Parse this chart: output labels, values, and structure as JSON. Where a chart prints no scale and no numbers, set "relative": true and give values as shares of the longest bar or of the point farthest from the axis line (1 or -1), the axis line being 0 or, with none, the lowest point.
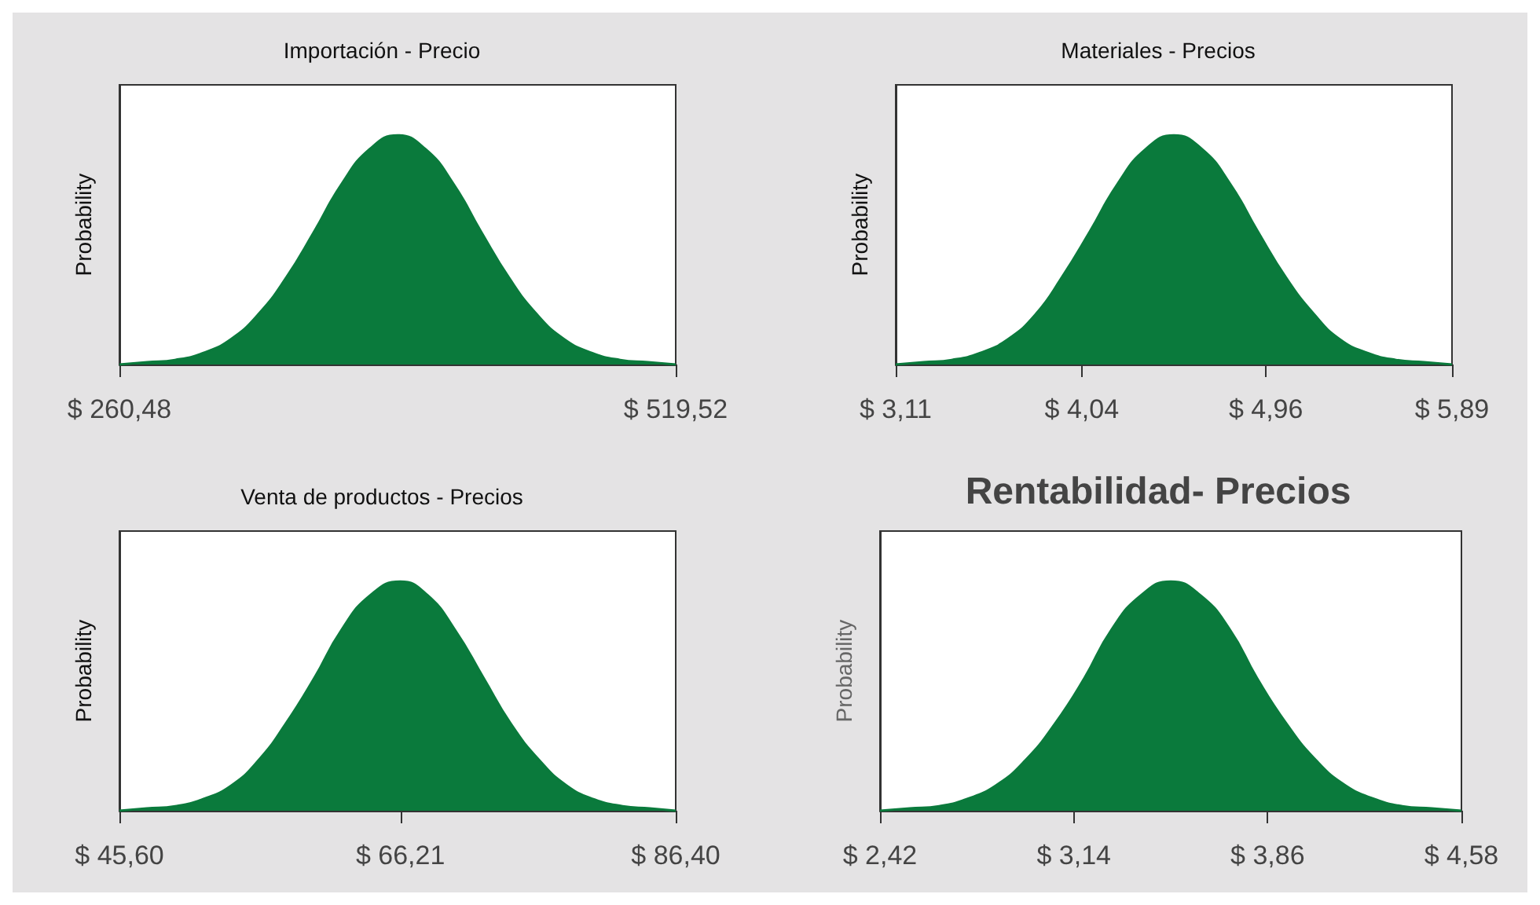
{
  "chart_data": [
    {
      "type": "area",
      "title": "Importación - Precio",
      "ylabel": "Probability",
      "relative": true,
      "grid": false,
      "color": "#0a7a3c",
      "xlim": [
        260.48,
        519.52
      ],
      "xticks": [
        {
          "value": 260.48,
          "label": "$ 260,48"
        },
        {
          "value": 519.52,
          "label": "$ 519,52"
        }
      ],
      "x": [
        260.48,
        273.43,
        286.38,
        299.34,
        312.29,
        325.24,
        338.19,
        351.15,
        364.1,
        377.05,
        390.0,
        402.95,
        415.9,
        428.86,
        441.81,
        454.76,
        467.71,
        480.66,
        493.62,
        506.57,
        519.52
      ],
      "values": [
        0,
        0.01,
        0.02,
        0.05,
        0.11,
        0.22,
        0.38,
        0.58,
        0.79,
        0.94,
        1,
        0.94,
        0.79,
        0.58,
        0.38,
        0.22,
        0.11,
        0.05,
        0.02,
        0.01,
        0
      ]
    },
    {
      "type": "area",
      "title": "Materiales - Precios",
      "ylabel": "Probability",
      "relative": true,
      "grid": false,
      "color": "#0a7a3c",
      "xlim": [
        3.11,
        5.89
      ],
      "xticks": [
        {
          "value": 3.11,
          "label": "$ 3,11"
        },
        {
          "value": 4.04,
          "label": "$ 4,04"
        },
        {
          "value": 4.96,
          "label": "$ 4,96"
        },
        {
          "value": 5.89,
          "label": "$ 5,89"
        }
      ],
      "x": [
        3.11,
        3.25,
        3.39,
        3.53,
        3.67,
        3.81,
        3.94,
        4.08,
        4.22,
        4.36,
        4.5,
        4.64,
        4.78,
        4.92,
        5.06,
        5.2,
        5.33,
        5.47,
        5.61,
        5.75,
        5.89
      ],
      "values": [
        0,
        0.01,
        0.02,
        0.05,
        0.11,
        0.22,
        0.38,
        0.58,
        0.79,
        0.94,
        1,
        0.94,
        0.79,
        0.58,
        0.38,
        0.22,
        0.11,
        0.05,
        0.02,
        0.01,
        0
      ]
    },
    {
      "type": "area",
      "title": "Venta de productos - Precios",
      "ylabel": "Probability",
      "relative": true,
      "grid": false,
      "color": "#0a7a3c",
      "xlim": [
        45.6,
        86.4
      ],
      "xticks": [
        {
          "value": 45.6,
          "label": "$ 45,60"
        },
        {
          "value": 66.21,
          "label": "$ 66,21"
        },
        {
          "value": 86.4,
          "label": "$ 86,40"
        }
      ],
      "x": [
        45.6,
        47.6,
        49.7,
        51.7,
        53.8,
        55.8,
        57.8,
        59.9,
        61.9,
        64.0,
        66.2,
        68.2,
        70.2,
        72.3,
        74.3,
        76.4,
        78.4,
        80.4,
        82.5,
        84.5,
        86.4
      ],
      "values": [
        0,
        0.01,
        0.02,
        0.05,
        0.11,
        0.22,
        0.38,
        0.58,
        0.79,
        0.94,
        1,
        0.94,
        0.79,
        0.58,
        0.38,
        0.22,
        0.11,
        0.05,
        0.02,
        0.01,
        0
      ]
    },
    {
      "type": "area",
      "title": "Rentabilidad- Precios",
      "ylabel": "Probability",
      "relative": true,
      "grid": false,
      "color": "#0a7a3c",
      "xlim": [
        2.42,
        4.58
      ],
      "xticks": [
        {
          "value": 2.42,
          "label": "$ 2,42"
        },
        {
          "value": 3.14,
          "label": "$ 3,14"
        },
        {
          "value": 3.86,
          "label": "$ 3,86"
        },
        {
          "value": 4.58,
          "label": "$ 4,58"
        }
      ],
      "x": [
        2.42,
        2.53,
        2.64,
        2.74,
        2.85,
        2.96,
        3.07,
        3.18,
        3.28,
        3.39,
        3.5,
        3.61,
        3.72,
        3.82,
        3.93,
        4.04,
        4.15,
        4.26,
        4.36,
        4.47,
        4.58
      ],
      "values": [
        0,
        0.01,
        0.02,
        0.05,
        0.11,
        0.22,
        0.38,
        0.58,
        0.79,
        0.94,
        1,
        0.94,
        0.79,
        0.58,
        0.38,
        0.22,
        0.11,
        0.05,
        0.02,
        0.01,
        0
      ]
    }
  ]
}
